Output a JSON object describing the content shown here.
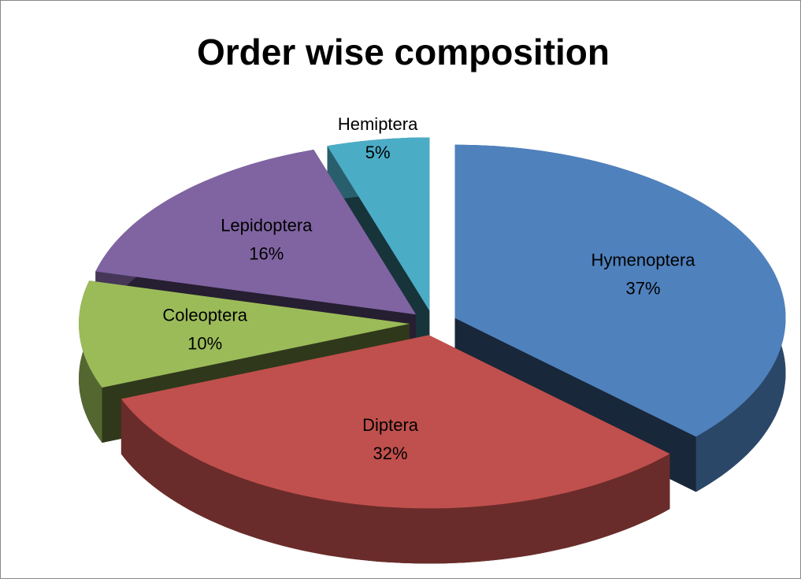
{
  "chart_data": {
    "type": "pie",
    "title": "Order wise composition",
    "categories": [
      "Hymenoptera",
      "Diptera",
      "Coleoptera",
      "Lepidoptera",
      "Hemiptera"
    ],
    "values": [
      37,
      32,
      10,
      16,
      5
    ],
    "value_labels": [
      "37%",
      "32%",
      "10%",
      "16%",
      "5%"
    ],
    "colors": [
      "#4f81bd",
      "#c0504d",
      "#9bbb59",
      "#8064a2",
      "#4bacc6"
    ]
  }
}
